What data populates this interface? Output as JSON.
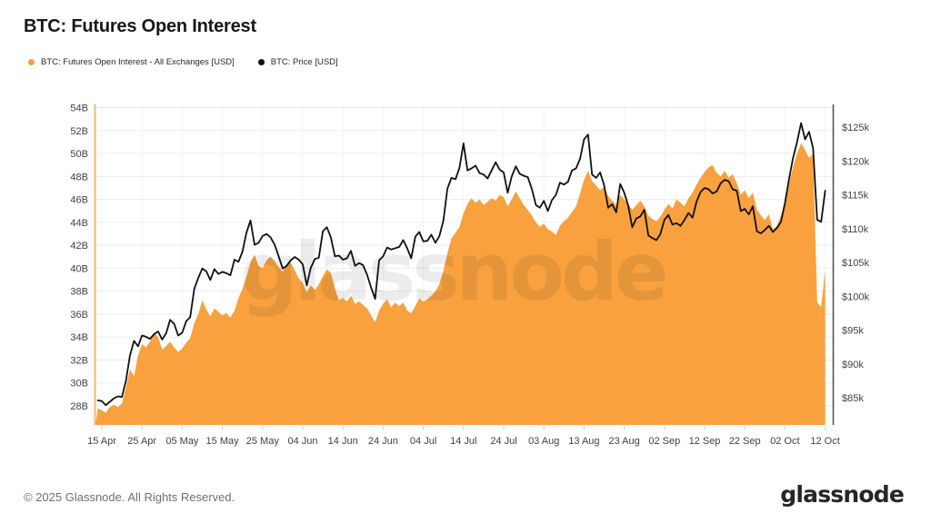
{
  "header": {
    "title": "BTC: Futures Open Interest"
  },
  "legend": [
    {
      "label": "BTC: Futures Open Interest - All Exchanges [USD]",
      "color": "#F8A13E"
    },
    {
      "label": "BTC: Price [USD]",
      "color": "#111111"
    }
  ],
  "watermark": "glassnode",
  "footer": {
    "copyright": "© 2025 Glassnode. All Rights Reserved.",
    "logo": "glassnode"
  },
  "chart_data": {
    "type": "area",
    "title": "BTC: Futures Open Interest",
    "grid": true,
    "legend_position": "top-left",
    "x_start_label": "15 Apr",
    "x_end_label": "12 Oct",
    "y_left": {
      "unit": "USD billions",
      "min": 28,
      "max": 54,
      "step": 2,
      "labels": [
        "54B",
        "52B",
        "50B",
        "48B",
        "46B",
        "44B",
        "42B",
        "40B",
        "38B",
        "36B",
        "34B",
        "32B",
        "30B",
        "28B"
      ]
    },
    "y_right": {
      "unit": "USD thousands",
      "min": 85,
      "max": 125,
      "step": 5,
      "labels": [
        "$125k",
        "$120k",
        "$115k",
        "$110k",
        "$105k",
        "$100k",
        "$95k",
        "$90k",
        "$85k"
      ]
    },
    "x_ticks": [
      {
        "label": "15 Apr",
        "day": 0
      },
      {
        "label": "25 Apr",
        "day": 10
      },
      {
        "label": "05 May",
        "day": 20
      },
      {
        "label": "15 May",
        "day": 30
      },
      {
        "label": "25 May",
        "day": 40
      },
      {
        "label": "04 Jun",
        "day": 50
      },
      {
        "label": "14 Jun",
        "day": 60
      },
      {
        "label": "24 Jun",
        "day": 70
      },
      {
        "label": "04 Jul",
        "day": 80
      },
      {
        "label": "14 Jul",
        "day": 90
      },
      {
        "label": "24 Jul",
        "day": 100
      },
      {
        "label": "03 Aug",
        "day": 110
      },
      {
        "label": "13 Aug",
        "day": 120
      },
      {
        "label": "23 Aug",
        "day": 130
      },
      {
        "label": "02 Sep",
        "day": 140
      },
      {
        "label": "12 Sep",
        "day": 150
      },
      {
        "label": "22 Sep",
        "day": 160
      },
      {
        "label": "02 Oct",
        "day": 170
      },
      {
        "label": "12 Oct",
        "day": 180
      }
    ],
    "series": [
      {
        "name": "BTC: Futures Open Interest - All Exchanges [USD]",
        "type": "area",
        "axis": "left",
        "color": "#F8A13E",
        "unit": "B USD",
        "start_day": -1,
        "interval_days": 1,
        "values": [
          27.8,
          27.6,
          27.4,
          27.9,
          28.1,
          27.9,
          28.2,
          29.6,
          31.2,
          30.6,
          32.4,
          33.4,
          33.1,
          33.6,
          34.4,
          34.0,
          32.9,
          33.2,
          33.6,
          33.1,
          32.7,
          33.0,
          33.5,
          33.9,
          35.2,
          36.0,
          37.2,
          36.4,
          35.8,
          36.5,
          36.2,
          35.9,
          36.1,
          35.7,
          36.3,
          37.4,
          38.2,
          39.3,
          40.5,
          41.2,
          40.2,
          40.0,
          40.7,
          41.0,
          40.6,
          40.1,
          39.7,
          40.3,
          40.5,
          39.8,
          39.1,
          38.7,
          37.9,
          38.5,
          38.1,
          38.6,
          39.3,
          39.9,
          39.6,
          38.2,
          37.2,
          37.4,
          37.1,
          37.6,
          36.9,
          37.1,
          36.8,
          36.5,
          35.9,
          35.3,
          36.3,
          36.9,
          37.3,
          36.6,
          37.0,
          36.7,
          37.0,
          36.3,
          36.1,
          36.7,
          37.4,
          37.1,
          37.3,
          37.6,
          38.0,
          38.6,
          39.8,
          41.3,
          42.6,
          43.1,
          43.6,
          44.8,
          45.6,
          46.1,
          45.7,
          46.0,
          45.5,
          45.8,
          46.1,
          45.9,
          46.4,
          46.2,
          45.4,
          46.0,
          46.7,
          46.1,
          45.5,
          45.1,
          44.6,
          44.0,
          43.6,
          43.9,
          43.4,
          43.2,
          42.9,
          43.7,
          44.1,
          44.4,
          44.9,
          45.4,
          46.5,
          47.7,
          48.5,
          47.6,
          47.2,
          46.8,
          47.1,
          46.3,
          45.9,
          45.5,
          46.4,
          46.0,
          45.6,
          45.1,
          45.5,
          45.9,
          45.4,
          44.6,
          44.3,
          44.1,
          44.5,
          45.1,
          45.6,
          45.2,
          46.0,
          45.7,
          45.4,
          46.1,
          46.6,
          47.3,
          47.9,
          48.4,
          48.8,
          49.0,
          48.3,
          48.0,
          48.5,
          47.9,
          48.2,
          47.4,
          46.4,
          46.8,
          46.1,
          46.6,
          45.1,
          44.6,
          44.2,
          44.7,
          43.4,
          43.7,
          44.6,
          45.9,
          47.4,
          48.8,
          50.0,
          50.9,
          50.3,
          49.6,
          50.0,
          37.0,
          36.6,
          39.9
        ]
      },
      {
        "name": "BTC: Price [USD]",
        "type": "line",
        "axis": "right",
        "color": "#111111",
        "unit": "k USD",
        "start_day": -1,
        "interval_days": 1,
        "values": [
          84.6,
          84.5,
          83.9,
          84.4,
          84.9,
          85.2,
          85.1,
          87.5,
          91.2,
          93.4,
          92.6,
          94.2,
          94.0,
          93.7,
          94.4,
          94.8,
          93.6,
          94.5,
          96.5,
          95.9,
          94.2,
          94.6,
          96.3,
          96.9,
          101.1,
          102.7,
          104.1,
          103.7,
          102.4,
          104.0,
          103.3,
          103.6,
          103.4,
          103.1,
          105.4,
          105.1,
          106.6,
          109.4,
          111.2,
          107.6,
          107.9,
          108.9,
          109.2,
          108.7,
          107.6,
          105.9,
          104.1,
          104.5,
          105.3,
          105.8,
          105.4,
          104.7,
          101.6,
          104.2,
          105.5,
          105.7,
          109.6,
          110.2,
          108.7,
          105.9,
          106.0,
          105.4,
          105.6,
          106.7,
          104.5,
          104.9,
          104.6,
          103.2,
          101.3,
          99.6,
          105.3,
          105.9,
          107.2,
          106.9,
          107.1,
          107.3,
          108.3,
          107.1,
          105.6,
          108.8,
          109.5,
          108.1,
          108.2,
          109.1,
          107.9,
          108.9,
          111.2,
          115.9,
          117.5,
          117.3,
          119.0,
          122.6,
          118.6,
          118.9,
          119.3,
          118.2,
          118.0,
          117.4,
          118.6,
          119.8,
          118.7,
          118.3,
          115.3,
          117.7,
          119.2,
          118.1,
          117.8,
          117.6,
          115.9,
          113.5,
          113.1,
          114.1,
          112.6,
          114.2,
          115.0,
          116.8,
          116.5,
          116.9,
          118.6,
          118.9,
          120.3,
          123.2,
          123.9,
          118.0,
          117.5,
          118.3,
          116.4,
          113.1,
          113.6,
          112.4,
          116.6,
          115.3,
          113.4,
          110.2,
          111.5,
          111.8,
          112.8,
          109.0,
          108.6,
          108.3,
          109.2,
          111.3,
          112.0,
          110.6,
          110.8,
          110.4,
          111.3,
          112.3,
          111.6,
          114.0,
          115.4,
          116.0,
          115.8,
          115.2,
          115.5,
          116.7,
          117.2,
          117.0,
          115.8,
          115.6,
          112.6,
          112.9,
          112.1,
          113.3,
          109.6,
          109.3,
          109.8,
          110.4,
          109.5,
          110.1,
          111.0,
          113.8,
          117.3,
          120.4,
          122.8,
          125.6,
          123.2,
          124.3,
          121.9,
          111.3,
          111.0,
          115.6
        ]
      }
    ]
  }
}
